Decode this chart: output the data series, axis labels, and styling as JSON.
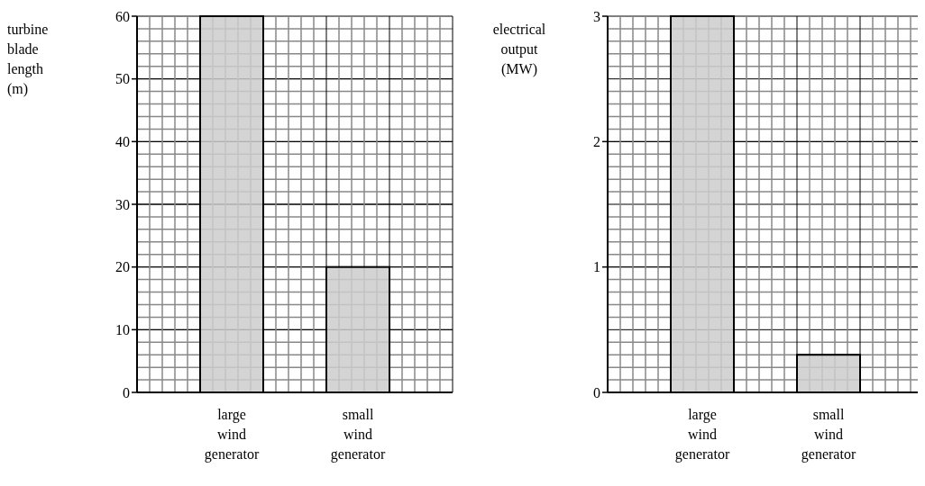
{
  "chart_data": [
    {
      "type": "bar",
      "ylabel": "turbine blade length (m)",
      "categories": [
        "large wind generator",
        "small wind generator"
      ],
      "values": [
        60,
        20
      ],
      "color": "#cccccc",
      "ylim": [
        0,
        60
      ],
      "yticks": [
        0,
        10,
        20,
        30,
        40,
        50,
        60
      ],
      "grid": true
    },
    {
      "type": "bar",
      "ylabel": "electrical output (MW)",
      "categories": [
        "large wind generator",
        "small wind generator"
      ],
      "values": [
        3,
        0.3
      ],
      "color": "#cccccc",
      "ylim": [
        0,
        3
      ],
      "yticks": [
        0,
        1,
        2,
        3
      ],
      "grid": true
    }
  ]
}
